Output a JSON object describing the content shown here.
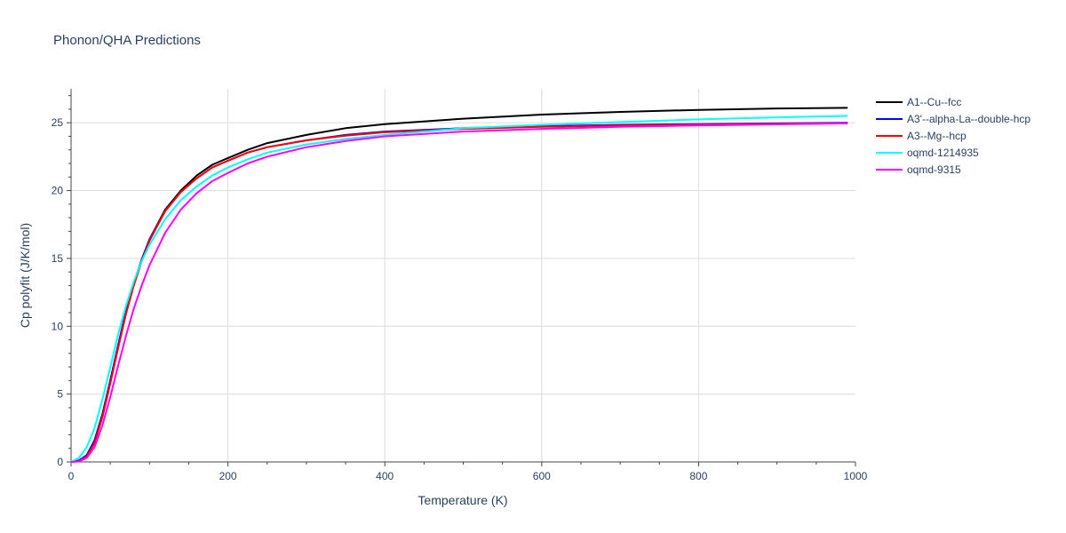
{
  "chart_data": {
    "type": "line",
    "title": "Phonon/QHA Predictions",
    "xlabel": "Temperature (K)",
    "ylabel": "Cp polyfit (J/K/mol)",
    "xlim": [
      0,
      1000
    ],
    "ylim": [
      0,
      27.5
    ],
    "xticks": [
      0,
      200,
      400,
      600,
      800,
      1000
    ],
    "yticks": [
      0,
      5,
      10,
      15,
      20,
      25
    ],
    "grid": true,
    "legend_position": "right",
    "series": [
      {
        "name": "A1--Cu--fcc",
        "color": "#000000",
        "x": [
          0,
          10,
          20,
          30,
          40,
          50,
          60,
          70,
          80,
          90,
          100,
          120,
          140,
          160,
          180,
          200,
          225,
          250,
          300,
          350,
          400,
          500,
          600,
          700,
          800,
          900,
          990
        ],
        "y": [
          0,
          0.1,
          0.5,
          1.6,
          3.5,
          6.0,
          8.6,
          11.0,
          13.1,
          14.9,
          16.4,
          18.6,
          20.0,
          21.1,
          21.9,
          22.4,
          23.0,
          23.5,
          24.1,
          24.6,
          24.9,
          25.3,
          25.6,
          25.8,
          25.95,
          26.05,
          26.1
        ]
      },
      {
        "name": "A3'--alpha-La--double-hcp",
        "color": "#0000ff",
        "x": [
          0,
          10,
          20,
          30,
          40,
          50,
          60,
          70,
          80,
          90,
          100,
          120,
          140,
          160,
          180,
          200,
          225,
          250,
          300,
          350,
          400,
          500,
          600,
          700,
          800,
          900,
          990
        ],
        "y": [
          0,
          0.1,
          0.5,
          1.6,
          3.5,
          6.0,
          8.6,
          11.1,
          13.2,
          14.9,
          16.4,
          18.5,
          19.9,
          20.9,
          21.7,
          22.2,
          22.8,
          23.2,
          23.7,
          24.1,
          24.35,
          24.6,
          24.75,
          24.85,
          24.9,
          24.95,
          25.0
        ]
      },
      {
        "name": "A3--Mg--hcp",
        "color": "#ff0000",
        "x": [
          0,
          10,
          20,
          30,
          40,
          50,
          60,
          70,
          80,
          90,
          100,
          120,
          140,
          160,
          180,
          200,
          225,
          250,
          300,
          350,
          400,
          500,
          600,
          700,
          800,
          900,
          990
        ],
        "y": [
          0,
          0.05,
          0.4,
          1.4,
          3.3,
          5.8,
          8.4,
          10.9,
          13.0,
          14.8,
          16.3,
          18.5,
          19.9,
          20.9,
          21.7,
          22.2,
          22.8,
          23.2,
          23.7,
          24.05,
          24.3,
          24.55,
          24.7,
          24.8,
          24.87,
          24.92,
          24.95
        ]
      },
      {
        "name": "oqmd-1214935",
        "color": "#00ffff",
        "x": [
          0,
          10,
          20,
          30,
          40,
          50,
          60,
          70,
          80,
          90,
          100,
          120,
          140,
          160,
          180,
          200,
          225,
          250,
          300,
          350,
          400,
          500,
          600,
          700,
          800,
          900,
          990
        ],
        "y": [
          0,
          0.3,
          1.1,
          2.5,
          4.6,
          7.0,
          9.4,
          11.5,
          13.3,
          14.8,
          16.0,
          17.9,
          19.3,
          20.3,
          21.1,
          21.7,
          22.3,
          22.8,
          23.4,
          23.8,
          24.1,
          24.6,
          24.85,
          25.05,
          25.25,
          25.4,
          25.5
        ]
      },
      {
        "name": "oqmd-9315",
        "color": "#ff00ff",
        "x": [
          0,
          10,
          20,
          30,
          40,
          50,
          60,
          70,
          80,
          90,
          100,
          120,
          140,
          160,
          180,
          200,
          225,
          250,
          300,
          350,
          400,
          500,
          600,
          700,
          800,
          900,
          990
        ],
        "y": [
          0,
          0.03,
          0.3,
          1.1,
          2.7,
          4.8,
          7.1,
          9.3,
          11.3,
          13.0,
          14.5,
          16.9,
          18.6,
          19.8,
          20.7,
          21.3,
          22.0,
          22.5,
          23.2,
          23.65,
          24.0,
          24.35,
          24.55,
          24.7,
          24.8,
          24.88,
          24.95
        ]
      }
    ]
  }
}
